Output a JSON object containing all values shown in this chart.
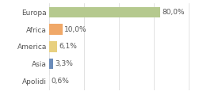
{
  "categories": [
    "Europa",
    "Africa",
    "America",
    "Asia",
    "Apolidi"
  ],
  "values": [
    80.0,
    10.0,
    6.1,
    3.3,
    0.6
  ],
  "labels": [
    "80,0%",
    "10,0%",
    "6,1%",
    "3,3%",
    "0,6%"
  ],
  "bar_colors": [
    "#b5c98e",
    "#f0a868",
    "#e8d080",
    "#6b8cba",
    "#e8e8e8"
  ],
  "background_color": "#ffffff",
  "xlim": [
    0,
    105
  ],
  "bar_height": 0.62,
  "label_fontsize": 6.5,
  "category_fontsize": 6.5,
  "grid_color": "#d8d8d8",
  "text_color": "#555555"
}
